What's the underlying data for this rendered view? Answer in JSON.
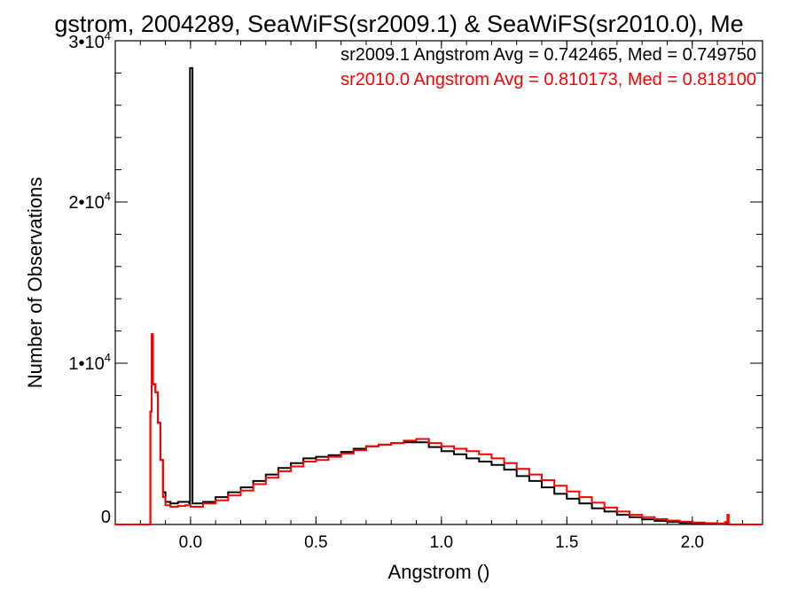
{
  "chart_data": {
    "type": "line",
    "title": "gstrom, 2004289, SeaWiFS(sr2009.1) & SeaWiFS(sr2010.0), Me",
    "xlabel": "Angstrom ()",
    "ylabel": "Number of Observations",
    "xlim": [
      -0.3,
      2.28
    ],
    "ylim": [
      0,
      30000
    ],
    "x_ticks": [
      {
        "value": 0.0,
        "label": "0.0"
      },
      {
        "value": 0.5,
        "label": "0.5"
      },
      {
        "value": 1.0,
        "label": "1.0"
      },
      {
        "value": 1.5,
        "label": "1.5"
      },
      {
        "value": 2.0,
        "label": "2.0"
      }
    ],
    "y_ticks": [
      {
        "value": 0,
        "mantissa": "0",
        "exponent": ""
      },
      {
        "value": 10000,
        "mantissa": "1•10",
        "exponent": "4"
      },
      {
        "value": 20000,
        "mantissa": "2•10",
        "exponent": "4"
      },
      {
        "value": 30000,
        "mantissa": "3•10",
        "exponent": "4"
      }
    ],
    "grid": false,
    "series": [
      {
        "name": "sr2009.1",
        "color": "#000000",
        "stats_text": "sr2009.1 Angstrom Avg = 0.742465, Med = 0.749750",
        "points": [
          [
            -0.3,
            0
          ],
          [
            -0.17,
            0
          ],
          [
            -0.16,
            7000
          ],
          [
            -0.155,
            11800
          ],
          [
            -0.15,
            8700
          ],
          [
            -0.14,
            8200
          ],
          [
            -0.13,
            6300
          ],
          [
            -0.12,
            4000
          ],
          [
            -0.11,
            2000
          ],
          [
            -0.1,
            1400
          ],
          [
            -0.08,
            1300
          ],
          [
            -0.05,
            1400
          ],
          [
            -0.02,
            1400
          ],
          [
            -0.005,
            1300
          ],
          [
            -0.002,
            28300
          ],
          [
            0.006,
            28300
          ],
          [
            0.008,
            1300
          ],
          [
            0.05,
            1400
          ],
          [
            0.1,
            1700
          ],
          [
            0.15,
            2000
          ],
          [
            0.2,
            2300
          ],
          [
            0.25,
            2700
          ],
          [
            0.3,
            3100
          ],
          [
            0.35,
            3500
          ],
          [
            0.4,
            3800
          ],
          [
            0.45,
            4100
          ],
          [
            0.5,
            4200
          ],
          [
            0.55,
            4300
          ],
          [
            0.6,
            4500
          ],
          [
            0.65,
            4700
          ],
          [
            0.7,
            4850
          ],
          [
            0.75,
            4950
          ],
          [
            0.8,
            5050
          ],
          [
            0.85,
            5100
          ],
          [
            0.9,
            5100
          ],
          [
            0.95,
            4800
          ],
          [
            1.0,
            4550
          ],
          [
            1.05,
            4350
          ],
          [
            1.1,
            4100
          ],
          [
            1.15,
            3900
          ],
          [
            1.2,
            3700
          ],
          [
            1.25,
            3400
          ],
          [
            1.3,
            3000
          ],
          [
            1.35,
            2700
          ],
          [
            1.4,
            2300
          ],
          [
            1.45,
            1900
          ],
          [
            1.5,
            1600
          ],
          [
            1.55,
            1300
          ],
          [
            1.6,
            1000
          ],
          [
            1.65,
            800
          ],
          [
            1.7,
            600
          ],
          [
            1.75,
            450
          ],
          [
            1.8,
            320
          ],
          [
            1.85,
            220
          ],
          [
            1.9,
            150
          ],
          [
            1.95,
            100
          ],
          [
            2.0,
            70
          ],
          [
            2.05,
            50
          ],
          [
            2.1,
            40
          ],
          [
            2.14,
            20
          ],
          [
            2.15,
            0
          ],
          [
            2.28,
            0
          ]
        ]
      },
      {
        "name": "sr2010.0",
        "color": "#ff0000",
        "stats_text": "sr2010.0 Angstrom Avg = 0.810173, Med = 0.818100",
        "points": [
          [
            -0.3,
            0
          ],
          [
            -0.17,
            0
          ],
          [
            -0.16,
            7000
          ],
          [
            -0.155,
            11800
          ],
          [
            -0.15,
            8700
          ],
          [
            -0.14,
            8200
          ],
          [
            -0.13,
            6300
          ],
          [
            -0.12,
            4000
          ],
          [
            -0.11,
            1700
          ],
          [
            -0.1,
            1200
          ],
          [
            -0.08,
            1100
          ],
          [
            -0.05,
            1150
          ],
          [
            -0.02,
            1200
          ],
          [
            0.0,
            1100
          ],
          [
            0.05,
            1300
          ],
          [
            0.1,
            1500
          ],
          [
            0.15,
            1800
          ],
          [
            0.2,
            2100
          ],
          [
            0.25,
            2500
          ],
          [
            0.3,
            2900
          ],
          [
            0.35,
            3300
          ],
          [
            0.4,
            3600
          ],
          [
            0.45,
            3900
          ],
          [
            0.5,
            4000
          ],
          [
            0.55,
            4200
          ],
          [
            0.6,
            4400
          ],
          [
            0.65,
            4600
          ],
          [
            0.7,
            4850
          ],
          [
            0.75,
            4950
          ],
          [
            0.8,
            5050
          ],
          [
            0.85,
            5200
          ],
          [
            0.9,
            5300
          ],
          [
            0.95,
            5050
          ],
          [
            1.0,
            4850
          ],
          [
            1.05,
            4700
          ],
          [
            1.1,
            4550
          ],
          [
            1.15,
            4350
          ],
          [
            1.2,
            4100
          ],
          [
            1.25,
            3800
          ],
          [
            1.3,
            3450
          ],
          [
            1.35,
            3100
          ],
          [
            1.4,
            2750
          ],
          [
            1.45,
            2400
          ],
          [
            1.5,
            2050
          ],
          [
            1.55,
            1700
          ],
          [
            1.6,
            1350
          ],
          [
            1.65,
            1050
          ],
          [
            1.7,
            800
          ],
          [
            1.75,
            600
          ],
          [
            1.8,
            450
          ],
          [
            1.85,
            330
          ],
          [
            1.9,
            240
          ],
          [
            1.95,
            170
          ],
          [
            2.0,
            120
          ],
          [
            2.05,
            80
          ],
          [
            2.1,
            60
          ],
          [
            2.13,
            150
          ],
          [
            2.14,
            600
          ],
          [
            2.145,
            0
          ],
          [
            2.28,
            0
          ]
        ]
      }
    ]
  }
}
